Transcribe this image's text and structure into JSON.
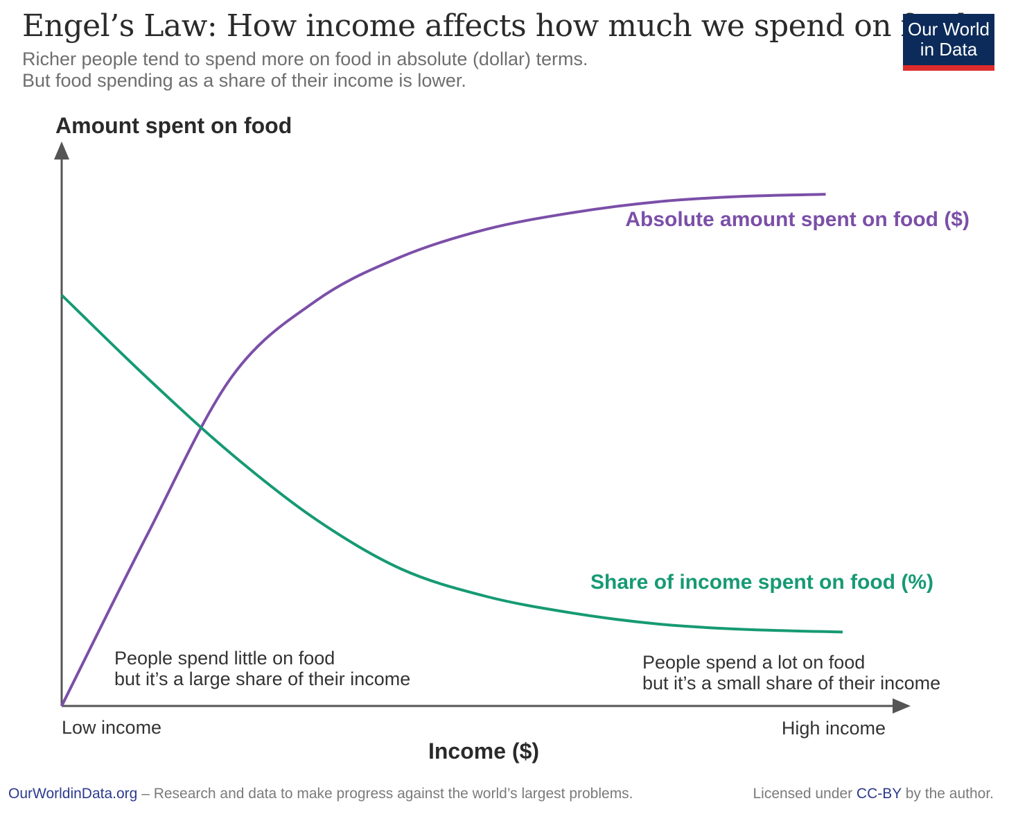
{
  "header": {
    "title": "Engel’s Law: How income affects how much we spend on food",
    "subtitle_line1": "Richer people tend to spend more on food in absolute (dollar) terms.",
    "subtitle_line2": "But food spending as a share of their income is lower."
  },
  "logo": {
    "line1": "Our World",
    "line2": "in Data",
    "color": "#0c2b5a",
    "accent": "#dd2c2c"
  },
  "chart_data": {
    "type": "line",
    "ylabel": "Amount spent on food",
    "xlabel": "Income ($)",
    "x_start_label": "Low income",
    "x_end_label": "High income",
    "series": [
      {
        "name": "Absolute amount spent on food ($)",
        "color": "#7b4fa8",
        "shape": "concave rising: starts at 0, rises steeply, then levels off near the top",
        "points": [
          [
            0,
            0
          ],
          [
            0.1,
            0.31
          ],
          [
            0.2,
            0.6
          ],
          [
            0.3,
            0.74
          ],
          [
            0.4,
            0.82
          ],
          [
            0.5,
            0.87
          ],
          [
            0.6,
            0.9
          ],
          [
            0.7,
            0.92
          ],
          [
            0.8,
            0.93
          ],
          [
            0.9,
            0.934
          ]
        ]
      },
      {
        "name": "Share of income spent on food (%)",
        "color": "#169a73",
        "shape": "declining: starts high, falls, then flattens near the bottom",
        "points": [
          [
            0,
            0.75
          ],
          [
            0.1,
            0.6
          ],
          [
            0.2,
            0.46
          ],
          [
            0.3,
            0.34
          ],
          [
            0.4,
            0.25
          ],
          [
            0.5,
            0.2
          ],
          [
            0.6,
            0.17
          ],
          [
            0.7,
            0.15
          ],
          [
            0.8,
            0.14
          ],
          [
            0.92,
            0.135
          ]
        ]
      }
    ],
    "annotations": {
      "low_line1": "People spend little on food",
      "low_line2": "but it’s a large share of their income",
      "high_line1": "People spend a lot on food",
      "high_line2": "but it’s a small share of their income"
    }
  },
  "footer": {
    "site": "OurWorldinData.org",
    "tagline": " – Research and data to make progress against the world’s largest problems.",
    "license_pre": "Licensed under ",
    "license_link": "CC-BY",
    "license_post": " by the author."
  }
}
